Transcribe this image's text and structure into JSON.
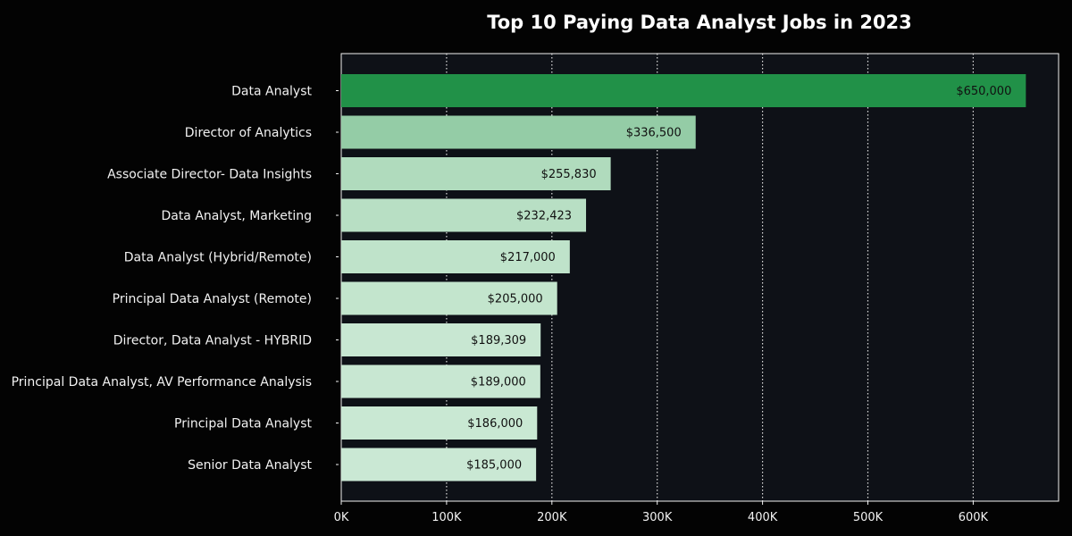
{
  "chart_data": {
    "type": "bar",
    "orientation": "horizontal",
    "title": "Top 10 Paying Data Analyst Jobs in 2023",
    "xlabel": "",
    "ylabel": "",
    "xlim": [
      0,
      680000
    ],
    "x_ticks": [
      0,
      100000,
      200000,
      300000,
      400000,
      500000,
      600000
    ],
    "x_tick_labels": [
      "0K",
      "100K",
      "200K",
      "300K",
      "400K",
      "500K",
      "600K"
    ],
    "grid": {
      "x": true,
      "y": false,
      "style": "dotted"
    },
    "categories": [
      "Data Analyst",
      "Director of Analytics",
      "Associate Director- Data Insights",
      "Data Analyst, Marketing",
      "Data Analyst (Hybrid/Remote)",
      "Principal Data Analyst (Remote)",
      "Director, Data Analyst - HYBRID",
      "Principal Data Analyst, AV Performance Analysis",
      "Principal Data Analyst",
      "Senior Data Analyst"
    ],
    "values": [
      650000,
      336500,
      255830,
      232423,
      217000,
      205000,
      189309,
      189000,
      186000,
      185000
    ],
    "value_labels": [
      "$650,000",
      "$336,500",
      "$255,830",
      "$232,423",
      "$217,000",
      "$205,000",
      "$189,309",
      "$189,000",
      "$186,000",
      "$185,000"
    ],
    "bar_colors": [
      "#219148",
      "#94cca6",
      "#b0dbbd",
      "#b8dfc4",
      "#bfe3ca",
      "#c3e5cd",
      "#c8e7d2",
      "#c8e7d2",
      "#c9e8d3",
      "#cae8d4"
    ]
  },
  "colors": {
    "figure_background": "#030303",
    "plot_background": "#0e1117",
    "text": "#f2f2f2",
    "gridline": "#dddddd",
    "value_label": "#111111"
  }
}
